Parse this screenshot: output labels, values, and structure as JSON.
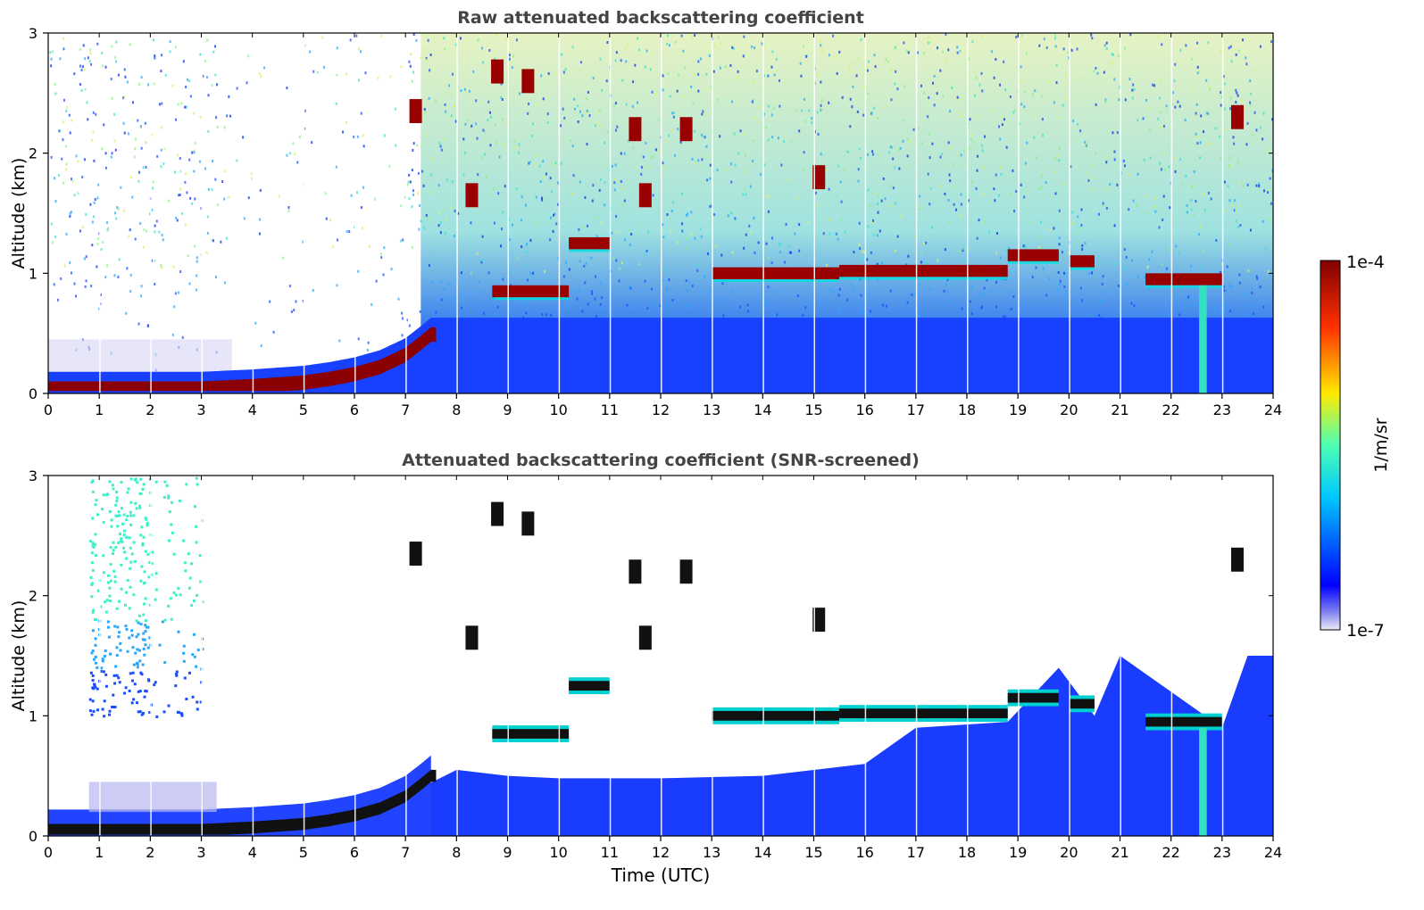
{
  "figure": {
    "xlabel": "Time (UTC)",
    "colorbar": {
      "label": "1/m/sr",
      "max_label": "1e-4",
      "min_label": "1e-7",
      "scale": "log",
      "colormap": "jet",
      "range": [
        1e-07,
        0.0001
      ]
    }
  },
  "chart_data": [
    {
      "type": "heatmap",
      "title": "Raw attenuated backscattering coefficient",
      "xlabel": "",
      "ylabel": "Altitude (km)",
      "xlim": [
        0,
        24
      ],
      "ylim": [
        0,
        3
      ],
      "xticks": [
        "0",
        "1",
        "2",
        "3",
        "4",
        "5",
        "6",
        "7",
        "8",
        "9",
        "10",
        "11",
        "12",
        "13",
        "14",
        "15",
        "16",
        "17",
        "18",
        "19",
        "20",
        "21",
        "22",
        "23",
        "24"
      ],
      "yticks": [
        "0",
        "1",
        "2",
        "3"
      ],
      "grid": false,
      "boundary_layer_km": [
        [
          0,
          0.1
        ],
        [
          1,
          0.1
        ],
        [
          2,
          0.1
        ],
        [
          3,
          0.1
        ],
        [
          4,
          0.12
        ],
        [
          5,
          0.15
        ],
        [
          5.5,
          0.18
        ],
        [
          6,
          0.22
        ],
        [
          6.5,
          0.28
        ],
        [
          7,
          0.38
        ],
        [
          7.3,
          0.48
        ],
        [
          7.5,
          0.55
        ]
      ],
      "cloud_layers": [
        {
          "start": 8.7,
          "end": 10.2,
          "altitude_km": 0.85
        },
        {
          "start": 10.2,
          "end": 11.0,
          "altitude_km": 1.25
        },
        {
          "start": 13.0,
          "end": 15.5,
          "altitude_km": 1.0
        },
        {
          "start": 15.5,
          "end": 18.8,
          "altitude_km": 1.02
        },
        {
          "start": 18.8,
          "end": 19.8,
          "altitude_km": 1.15
        },
        {
          "start": 20.0,
          "end": 20.5,
          "altitude_km": 1.1
        },
        {
          "start": 21.5,
          "end": 23.0,
          "altitude_km": 0.95
        }
      ],
      "elevated_clouds": [
        {
          "time": 7.2,
          "altitude_km": 2.35
        },
        {
          "time": 8.3,
          "altitude_km": 1.65
        },
        {
          "time": 8.8,
          "altitude_km": 2.68
        },
        {
          "time": 9.4,
          "altitude_km": 2.6
        },
        {
          "time": 11.5,
          "altitude_km": 2.2
        },
        {
          "time": 11.7,
          "altitude_km": 1.65
        },
        {
          "time": 12.5,
          "altitude_km": 2.2
        },
        {
          "time": 15.1,
          "altitude_km": 1.8
        },
        {
          "time": 23.3,
          "altitude_km": 2.3
        }
      ]
    },
    {
      "type": "heatmap",
      "title": "Attenuated backscattering coefficient (SNR-screened)",
      "xlabel": "Time (UTC)",
      "ylabel": "Altitude (km)",
      "xlim": [
        0,
        24
      ],
      "ylim": [
        0,
        3
      ],
      "xticks": [
        "0",
        "1",
        "2",
        "3",
        "4",
        "5",
        "6",
        "7",
        "8",
        "9",
        "10",
        "11",
        "12",
        "13",
        "14",
        "15",
        "16",
        "17",
        "18",
        "19",
        "20",
        "21",
        "22",
        "23",
        "24"
      ],
      "yticks": [
        "0",
        "1",
        "2",
        "3"
      ],
      "grid": false
    }
  ]
}
